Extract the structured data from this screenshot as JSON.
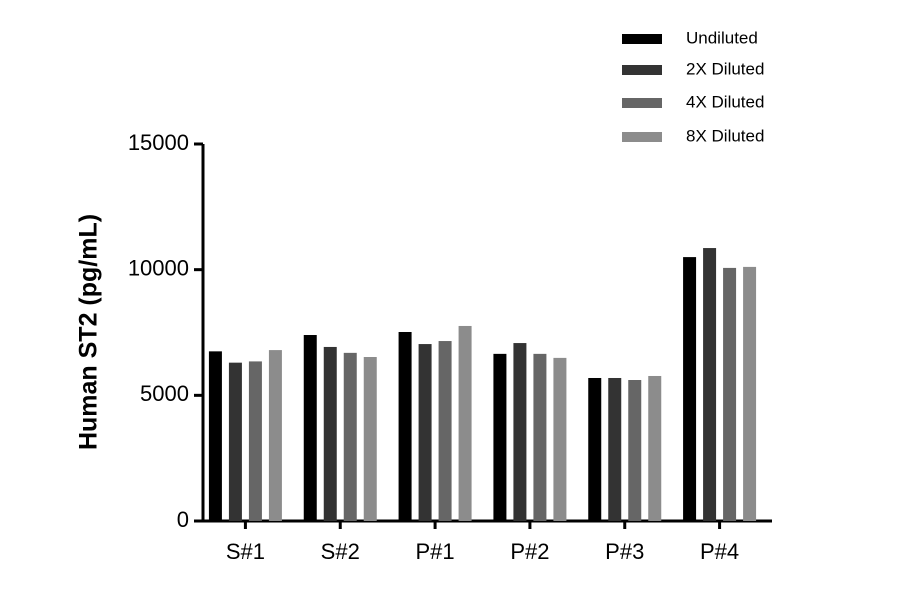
{
  "chart_data": {
    "type": "bar",
    "y_label": "Human ST2 (pg/mL)",
    "categories": [
      "S#1",
      "S#2",
      "P#1",
      "P#2",
      "P#3",
      "P#4"
    ],
    "series": [
      {
        "name": "Undiluted",
        "color": "#000000",
        "values": [
          6750,
          7400,
          7520,
          6650,
          5690,
          10500
        ]
      },
      {
        "name": "2X Diluted",
        "color": "#333333",
        "values": [
          6300,
          6925,
          7040,
          7080,
          5690,
          10860
        ]
      },
      {
        "name": "4X Diluted",
        "color": "#666666",
        "values": [
          6350,
          6690,
          7160,
          6650,
          5610,
          10070
        ]
      },
      {
        "name": "8X Diluted",
        "color": "#8c8c8c",
        "values": [
          6800,
          6525,
          7760,
          6490,
          5770,
          10110
        ]
      }
    ],
    "ylim": [
      0,
      15000
    ],
    "yticks": [
      0,
      5000,
      10000,
      15000
    ],
    "grid": false,
    "legend": "top-right"
  }
}
